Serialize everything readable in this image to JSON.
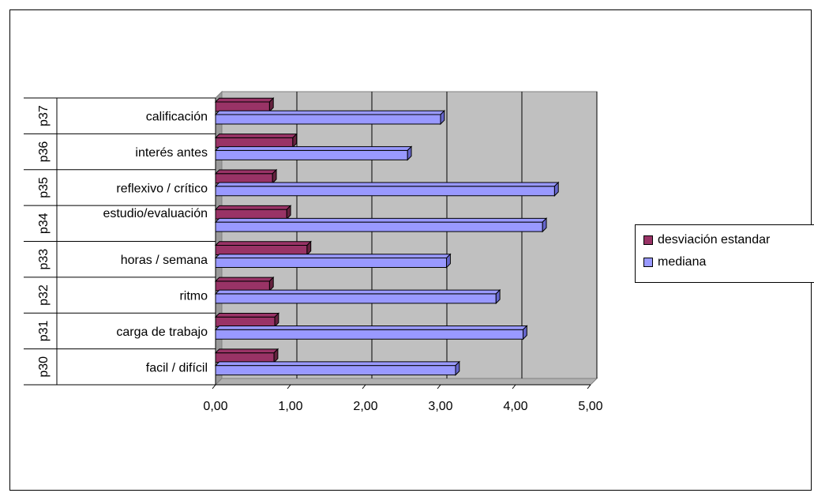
{
  "chart_data": {
    "type": "bar",
    "orientation": "horizontal",
    "categories": [
      {
        "code": "p30",
        "label": "facil / difícil"
      },
      {
        "code": "p31",
        "label": "carga de trabajo"
      },
      {
        "code": "p32",
        "label": "ritmo"
      },
      {
        "code": "p33",
        "label": "horas / semana"
      },
      {
        "code": "p34",
        "label": "estudio/evaluación"
      },
      {
        "code": "p35",
        "label": "reflexivo / crítico"
      },
      {
        "code": "p36",
        "label": "interés antes"
      },
      {
        "code": "p37",
        "label": "calificación"
      }
    ],
    "series": [
      {
        "name": "desviación estandar",
        "color": "#993366",
        "values": [
          0.78,
          0.79,
          0.72,
          1.22,
          0.95,
          0.76,
          1.03,
          0.72
        ]
      },
      {
        "name": "mediana",
        "color": "#9999ff",
        "values": [
          3.2,
          4.1,
          3.74,
          3.08,
          4.36,
          4.52,
          2.56,
          3.0
        ]
      }
    ],
    "xlim": [
      0,
      5
    ],
    "xticks": [
      "0,00",
      "1,00",
      "2,00",
      "3,00",
      "4,00",
      "5,00"
    ],
    "grid": true,
    "plot_background": "#c0c0c0",
    "legend_position": "right"
  }
}
